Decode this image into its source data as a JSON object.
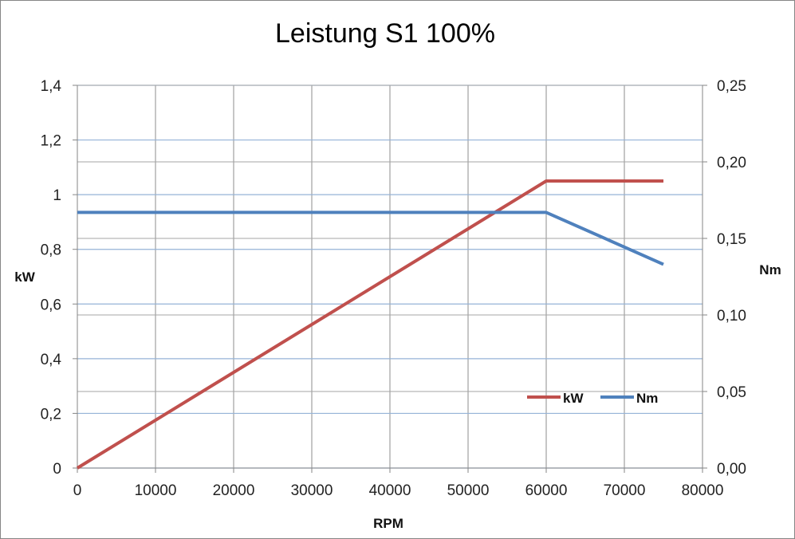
{
  "chart_data": {
    "type": "line",
    "title": "Leistung S1 100%",
    "xlabel": "RPM",
    "ylabel": "kW",
    "y2label": "Nm",
    "xlim": [
      0,
      80000
    ],
    "ylim": [
      0,
      1.4
    ],
    "y2lim": [
      0,
      0.25
    ],
    "x_ticks": [
      "0",
      "10000",
      "20000",
      "30000",
      "40000",
      "50000",
      "60000",
      "70000",
      "80000"
    ],
    "y_ticks": [
      "0",
      "0,2",
      "0,4",
      "0,6",
      "0,8",
      "1",
      "1,2",
      "1,4"
    ],
    "y2_ticks": [
      "0,00",
      "0,05",
      "0,10",
      "0,15",
      "0,20",
      "0,25"
    ],
    "grid": true,
    "legend_position": "bottom-right",
    "series": [
      {
        "name": "kW",
        "axis": "left",
        "color": "#C0504D",
        "x": [
          0,
          60000,
          75000
        ],
        "y": [
          0,
          1.05,
          1.05
        ]
      },
      {
        "name": "Nm",
        "axis": "right",
        "color": "#4F81BD",
        "x": [
          0,
          60000,
          75000
        ],
        "y": [
          0.167,
          0.167,
          0.133
        ]
      }
    ]
  }
}
